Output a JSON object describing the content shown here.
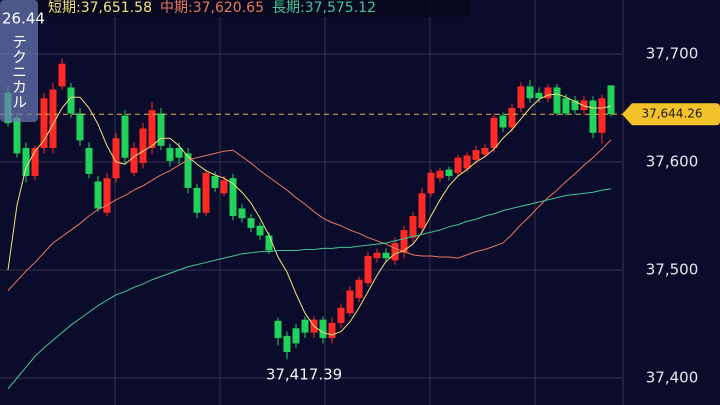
{
  "chart_data": {
    "type": "candlestick",
    "ylim": [
      37375,
      37750
    ],
    "yticks": [
      {
        "value": 37400,
        "label": "37,400"
      },
      {
        "value": 37500,
        "label": "37,500"
      },
      {
        "value": 37600,
        "label": "37,600"
      },
      {
        "value": 37700,
        "label": "37,700"
      }
    ],
    "grid": true,
    "up_color": "#ff2a26",
    "down_color": "#21d35a",
    "candles": {
      "open": [
        37664,
        37641,
        37613,
        37587,
        37613,
        37613,
        37670,
        37669,
        37645,
        37613,
        37582,
        37553,
        37585,
        37643,
        37590,
        37599,
        37613,
        37645,
        37613,
        37613,
        37608,
        37576,
        37553,
        37587,
        37571,
        37585,
        37557,
        37548,
        37541,
        37532,
        37453,
        37439,
        37446,
        37454,
        37442,
        37454,
        37437,
        37451,
        37460,
        37474,
        37488,
        37511,
        37516,
        37509,
        37516,
        37530,
        37539,
        37571,
        37585,
        37593,
        37590,
        37594,
        37602,
        37607,
        37613,
        37643,
        37632,
        37650,
        37670,
        37664,
        37659,
        37669,
        37659,
        37657,
        37648,
        37657,
        37627,
        37671
      ],
      "close": [
        37636,
        37608,
        37587,
        37613,
        37659,
        37667,
        37691,
        37645,
        37620,
        37589,
        37557,
        37585,
        37622,
        37604,
        37613,
        37631,
        37648,
        37615,
        37601,
        37604,
        37576,
        37553,
        37590,
        37576,
        37583,
        37550,
        37548,
        37539,
        37532,
        37518,
        37437,
        37424,
        37432,
        37442,
        37454,
        37437,
        37451,
        37465,
        37481,
        37491,
        37513,
        37516,
        37511,
        37525,
        37537,
        37550,
        37571,
        37590,
        37592,
        37587,
        37604,
        37606,
        37611,
        37613,
        37641,
        37632,
        37650,
        37670,
        37659,
        37659,
        37669,
        37645,
        37645,
        37648,
        37657,
        37627,
        37659,
        37644.26
      ],
      "high": [
        37670,
        37645,
        37618,
        37615,
        37664,
        37673,
        37696,
        37673,
        37650,
        37618,
        37587,
        37590,
        37627,
        37648,
        37618,
        37636,
        37655,
        37650,
        37617,
        37618,
        37613,
        37580,
        37593,
        37591,
        37587,
        37589,
        37561,
        37552,
        37544,
        37535,
        37456,
        37443,
        37450,
        37457,
        37457,
        37457,
        37456,
        37469,
        37485,
        37494,
        37517,
        37520,
        37520,
        37530,
        37541,
        37554,
        37576,
        37593,
        37595,
        37596,
        37607,
        37609,
        37615,
        37617,
        37645,
        37646,
        37654,
        37674,
        37676,
        37669,
        37672,
        37672,
        37663,
        37661,
        37661,
        37661,
        37663,
        37671
      ],
      "low": [
        37633,
        37604,
        37581,
        37583,
        37608,
        37608,
        37667,
        37641,
        37615,
        37585,
        37554,
        37550,
        37581,
        37599,
        37587,
        37594,
        37608,
        37611,
        37596,
        37598,
        37571,
        37548,
        37550,
        37572,
        37568,
        37546,
        37544,
        37535,
        37528,
        37515,
        37430,
        37417.39,
        37428,
        37437,
        37437,
        37432,
        37432,
        37446,
        37457,
        37470,
        37485,
        37507,
        37507,
        37505,
        37511,
        37526,
        37535,
        37568,
        37581,
        37583,
        37587,
        37591,
        37598,
        37604,
        37609,
        37628,
        37628,
        37646,
        37655,
        37655,
        37655,
        37643,
        37643,
        37644,
        37644,
        37622,
        37617,
        37642
      ]
    },
    "series": [
      {
        "name": "短期:",
        "color": "#f3e27a",
        "last_label": "37,651.58",
        "values": [
          37500,
          37560,
          37595,
          37610,
          37620,
          37635,
          37650,
          37660,
          37660,
          37650,
          37635,
          37615,
          37600,
          37598,
          37605,
          37610,
          37615,
          37622,
          37622,
          37615,
          37605,
          37598,
          37592,
          37588,
          37585,
          37580,
          37572,
          37562,
          37548,
          37532,
          37512,
          37498,
          37478,
          37460,
          37448,
          37442,
          37440,
          37443,
          37452,
          37465,
          37480,
          37495,
          37508,
          37515,
          37518,
          37524,
          37535,
          37550,
          37565,
          37578,
          37587,
          37593,
          37600,
          37605,
          37612,
          37622,
          37630,
          37640,
          37650,
          37658,
          37662,
          37663,
          37660,
          37656,
          37652,
          37650,
          37650,
          37651.58
        ]
      },
      {
        "name": "中期:",
        "color": "#e8795a",
        "last_label": "37,620.65",
        "values": [
          37481,
          37490,
          37499,
          37507,
          37516,
          37525,
          37531,
          37537,
          37543,
          37550,
          37556,
          37560,
          37565,
          37569,
          37574,
          37578,
          37583,
          37588,
          37592,
          37597,
          37602,
          37604,
          37606,
          37608,
          37610,
          37611,
          37605,
          37599,
          37592,
          37586,
          37580,
          37574,
          37567,
          37561,
          37554,
          37548,
          37544,
          37541,
          37537,
          37534,
          37530,
          37527,
          37524,
          37520,
          37517,
          37514,
          37513,
          37513,
          37512,
          37512,
          37511,
          37514,
          37517,
          37519,
          37522,
          37525,
          37533,
          37542,
          37550,
          37559,
          37567,
          37574,
          37582,
          37589,
          37597,
          37604,
          37612,
          37620.65
        ]
      },
      {
        "name": "長期:",
        "color": "#45c793",
        "last_label": "37,575.12",
        "values": [
          37390,
          37400,
          37410,
          37420,
          37428,
          37435,
          37442,
          37449,
          37455,
          37461,
          37467,
          37472,
          37477,
          37480,
          37484,
          37487,
          37491,
          37494,
          37497,
          37500,
          37503,
          37505,
          37507,
          37509,
          37511,
          37513,
          37515,
          37516,
          37517,
          37517,
          37518,
          37518,
          37518,
          37519,
          37519,
          37520,
          37520,
          37521,
          37521,
          37522,
          37523,
          37524,
          37525,
          37527,
          37529,
          37531,
          37533,
          37535,
          37537,
          37540,
          37542,
          37545,
          37547,
          37550,
          37552,
          37555,
          37557,
          37559,
          37561,
          37563,
          37565,
          37567,
          37569,
          37570,
          37571,
          37572,
          37574,
          37575.12
        ]
      }
    ],
    "last_price": 37644.26,
    "last_price_label": "37,644.26",
    "low": 37417.39,
    "low_label": "37,417.39"
  },
  "ui": {
    "indicator_value": "26.44",
    "button": "テクニカル"
  }
}
